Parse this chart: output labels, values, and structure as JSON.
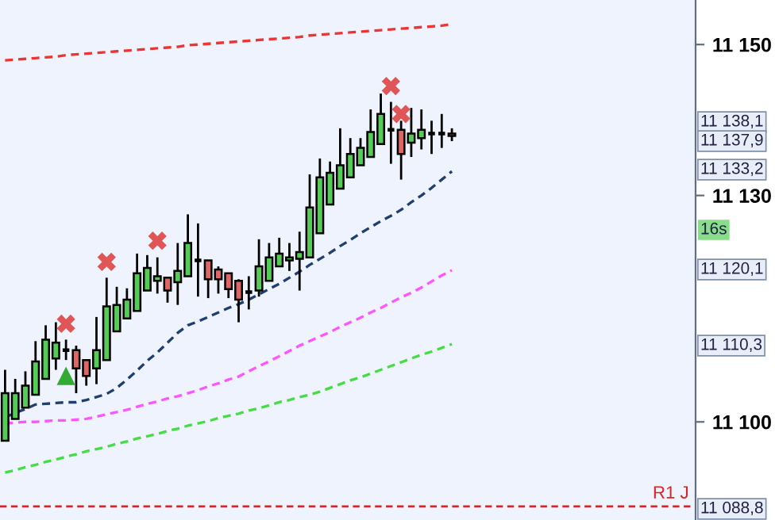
{
  "chart_data": {
    "type": "candlestick",
    "categories": [
      null,
      null,
      null,
      null,
      null,
      null,
      null,
      null,
      null,
      null,
      null,
      null,
      null,
      null,
      null,
      null,
      null,
      null,
      null,
      null,
      null,
      null,
      null,
      null,
      null,
      null,
      null,
      null,
      null,
      null,
      null,
      null,
      null,
      null,
      null,
      null,
      null,
      null,
      null,
      null,
      null,
      null,
      null,
      null,
      null
    ],
    "ohlc": [
      [
        11097.5,
        11106.9,
        11097.5,
        11103.8
      ],
      [
        11100.4,
        11105.7,
        11100.4,
        11103.8
      ],
      [
        11101.9,
        11106.7,
        11101.9,
        11104.8
      ],
      [
        11103.6,
        11110.7,
        11103.6,
        11108.0
      ],
      [
        11105.7,
        11112.8,
        11105.7,
        11110.9
      ],
      [
        11108.4,
        11113.2,
        11106.9,
        11110.5
      ],
      [
        11109.5,
        11110.9,
        11108.2,
        11109.5
      ],
      [
        11109.5,
        11110.1,
        11103.8,
        11107.1
      ],
      [
        11108.2,
        11108.2,
        11104.8,
        11106.1
      ],
      [
        11107.1,
        11113.9,
        11105.0,
        11109.5
      ],
      [
        11108.2,
        11119.1,
        11108.2,
        11115.3
      ],
      [
        11112.0,
        11117.9,
        11112.0,
        11115.5
      ],
      [
        11113.7,
        11117.7,
        11113.7,
        11116.2
      ],
      [
        11114.7,
        11122.3,
        11114.7,
        11119.7
      ],
      [
        11117.4,
        11122.1,
        11117.4,
        11120.4
      ],
      [
        11118.7,
        11121.8,
        11117.0,
        11119.3
      ],
      [
        11119.1,
        11119.1,
        11115.8,
        11117.4
      ],
      [
        11118.5,
        11123.7,
        11115.5,
        11120.0
      ],
      [
        11119.3,
        11127.5,
        11119.3,
        11123.7
      ],
      [
        11121.4,
        11126.3,
        11116.6,
        11121.4
      ],
      [
        11121.4,
        11121.4,
        11116.4,
        11118.9
      ],
      [
        11120.2,
        11120.6,
        11117.0,
        11118.9
      ],
      [
        11119.7,
        11119.7,
        11116.4,
        11117.6
      ],
      [
        11118.7,
        11118.9,
        11113.2,
        11116.2
      ],
      [
        11117.2,
        11119.3,
        11114.9,
        11117.2
      ],
      [
        11117.4,
        11124.2,
        11116.6,
        11120.6
      ],
      [
        11118.7,
        11123.7,
        11118.7,
        11121.8
      ],
      [
        11120.6,
        11124.4,
        11120.6,
        11122.3
      ],
      [
        11121.4,
        11123.7,
        11120.0,
        11121.8
      ],
      [
        11121.6,
        11125.2,
        11117.4,
        11122.5
      ],
      [
        11121.8,
        11132.8,
        11121.8,
        11128.4
      ],
      [
        11125.0,
        11134.9,
        11125.0,
        11132.4
      ],
      [
        11128.8,
        11134.5,
        11128.8,
        11133.0
      ],
      [
        11130.9,
        11138.9,
        11130.9,
        11134.0
      ],
      [
        11132.4,
        11137.6,
        11132.4,
        11135.5
      ],
      [
        11134.0,
        11137.6,
        11134.0,
        11136.3
      ],
      [
        11135.1,
        11141.4,
        11135.1,
        11138.4
      ],
      [
        11136.8,
        11143.5,
        11136.8,
        11140.8
      ],
      [
        11138.7,
        11142.4,
        11134.2,
        11138.7
      ],
      [
        11138.7,
        11139.9,
        11132.1,
        11135.5
      ],
      [
        11137.0,
        11141.6,
        11135.1,
        11138.2
      ],
      [
        11137.6,
        11141.4,
        11136.1,
        11138.7
      ],
      [
        11138.2,
        11139.9,
        11135.5,
        11138.2
      ],
      [
        11138.2,
        11140.8,
        11136.3,
        11138.2
      ],
      [
        11138.2,
        11138.9,
        11137.2,
        11137.9
      ]
    ],
    "colors": [
      "#55cc55",
      "#55cc55",
      "#55cc55",
      "#55cc55",
      "#55cc55",
      "#55cc55",
      "#000000",
      "#e06666",
      "#e06666",
      "#55cc55",
      "#55cc55",
      "#55cc55",
      "#55cc55",
      "#55cc55",
      "#55cc55",
      "#55cc55",
      "#e06666",
      "#55cc55",
      "#55cc55",
      "#000000",
      "#e06666",
      "#e06666",
      "#e06666",
      "#e06666",
      "#000000",
      "#55cc55",
      "#55cc55",
      "#55cc55",
      "#55cc55",
      "#55cc55",
      "#55cc55",
      "#55cc55",
      "#55cc55",
      "#55cc55",
      "#55cc55",
      "#55cc55",
      "#55cc55",
      "#55cc55",
      "#000000",
      "#e06666",
      "#55cc55",
      "#55cc55",
      "#000000",
      "#000000",
      "#e06666"
    ],
    "series": [
      {
        "type": "line",
        "color": "#1f3f6e",
        "line_style": "dashed",
        "values": [
          11100.6,
          11101.2,
          11101.7,
          11102.3,
          11102.4,
          11102.5,
          11102.6,
          11102.6,
          11102.9,
          11103.3,
          11103.7,
          11104.5,
          11105.6,
          11106.8,
          11108.1,
          11109.2,
          11110.5,
          11111.8,
          11112.8,
          11113.3,
          11113.9,
          11114.5,
          11115.1,
          11115.6,
          11116.2,
          11116.9,
          11117.6,
          11118.3,
          11119.1,
          11119.9,
          11120.8,
          11121.6,
          11122.4,
          11123.3,
          11124.1,
          11125.0,
          11125.8,
          11126.6,
          11127.3,
          11128.1,
          11129.1,
          11130.0,
          11131.0,
          11132.1,
          11133.2
        ]
      },
      {
        "type": "line",
        "color": "#ff55ff",
        "line_style": "dashed",
        "values": [
          11099.8,
          11099.9,
          11100.0,
          11100.0,
          11100.1,
          11100.2,
          11100.2,
          11100.3,
          11100.4,
          11100.7,
          11101.0,
          11101.3,
          11101.6,
          11102.0,
          11102.4,
          11102.7,
          11103.1,
          11103.4,
          11103.8,
          11104.2,
          11104.7,
          11105.1,
          11105.6,
          11106.0,
          11106.7,
          11107.4,
          11108.0,
          11108.7,
          11109.4,
          11110.1,
          11110.7,
          11111.3,
          11111.9,
          11112.6,
          11113.2,
          11113.8,
          11114.5,
          11115.1,
          11115.8,
          11116.5,
          11117.1,
          11117.8,
          11118.6,
          11119.4,
          11120.1
        ]
      },
      {
        "type": "line",
        "color": "#44dd44",
        "line_style": "dashed",
        "values": [
          11093.3,
          11093.6,
          11094.0,
          11094.3,
          11094.7,
          11095.0,
          11095.4,
          11095.7,
          11096.1,
          11096.4,
          11096.7,
          11097.1,
          11097.4,
          11097.8,
          11098.1,
          11098.4,
          11098.8,
          11099.1,
          11099.5,
          11099.8,
          11100.1,
          11100.5,
          11100.8,
          11101.1,
          11101.5,
          11101.8,
          11102.2,
          11102.6,
          11102.9,
          11103.3,
          11103.6,
          11104.0,
          11104.5,
          11105.0,
          11105.5,
          11105.9,
          11106.4,
          11106.9,
          11107.4,
          11107.9,
          11108.4,
          11108.9,
          11109.3,
          11109.8,
          11110.3
        ]
      },
      {
        "type": "line",
        "color": "#ee3333",
        "line_style": "dashed",
        "values": [
          11147.9,
          11148.0,
          11148.1,
          11148.2,
          11148.3,
          11148.4,
          11148.6,
          11148.7,
          11148.8,
          11148.9,
          11149.0,
          11149.1,
          11149.2,
          11149.3,
          11149.4,
          11149.5,
          11149.6,
          11149.7,
          11149.9,
          11150.0,
          11150.1,
          11150.2,
          11150.3,
          11150.4,
          11150.5,
          11150.6,
          11150.7,
          11150.8,
          11150.9,
          11151.0,
          11151.2,
          11151.3,
          11151.4,
          11151.5,
          11151.6,
          11151.7,
          11151.8,
          11151.9,
          11152.0,
          11152.1,
          11152.2,
          11152.3,
          11152.4,
          11152.5,
          11152.7
        ]
      },
      {
        "type": "scatter",
        "color": "#e05555",
        "marker": "cross",
        "values": [
          null,
          null,
          null,
          null,
          null,
          null,
          11113.0,
          null,
          null,
          null,
          11121.2,
          null,
          null,
          null,
          null,
          11124.0,
          null,
          null,
          null,
          null,
          null,
          null,
          null,
          null,
          null,
          null,
          null,
          null,
          null,
          null,
          null,
          null,
          null,
          null,
          null,
          null,
          null,
          null,
          11144.5,
          11140.8,
          null,
          null,
          null,
          null,
          null
        ]
      },
      {
        "type": "scatter",
        "color": "#33aa33",
        "marker": "triangle",
        "values": [
          null,
          null,
          null,
          null,
          null,
          null,
          11106.1,
          null,
          null,
          null,
          null,
          null,
          null,
          null,
          null,
          null,
          null,
          null,
          null,
          null,
          null,
          null,
          null,
          null,
          null,
          null,
          null,
          null,
          null,
          null,
          null,
          null,
          null,
          null,
          null,
          null,
          null,
          null,
          null,
          null,
          null,
          null,
          null,
          null,
          null
        ]
      }
    ],
    "ref_lines": [
      {
        "axis": "y",
        "value": 11088.8,
        "label": "R1 J",
        "color": "#dd2222",
        "line_style": "dashed"
      }
    ],
    "ylim": [
      11087.0,
      11155.9
    ],
    "yticks": [
      {
        "value": 11150,
        "label": "11 150"
      },
      {
        "value": 11130,
        "label": "11 130"
      },
      {
        "value": 11100,
        "label": "11 100"
      }
    ],
    "tick_labels": "y",
    "grid": false,
    "legend": false,
    "annotations": [
      "11 138,1",
      "11 137,9",
      "16s",
      "11 133,2",
      "11 120,1",
      "11 110,3",
      "11 088,8"
    ]
  }
}
